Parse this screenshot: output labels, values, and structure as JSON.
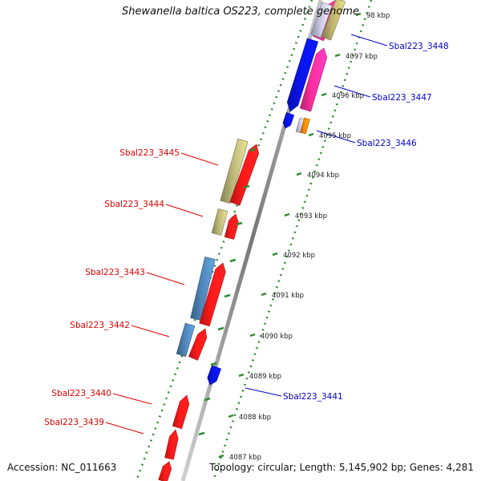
{
  "title": "Shewanella baltica OS223, complete genome",
  "footer": {
    "accession": "Accession: NC_011663",
    "topology": "Topology: circular; Length: 5,145,902 bp; Genes: 4,281"
  },
  "colors": {
    "backbone": "#8c8c8c",
    "tick": "#2e8b2e",
    "forward_gene": "#ff1a1a",
    "reverse_gene": "#0a14f0",
    "khaki": "#bdb879",
    "steelblue": "#4f86b8",
    "pink": "#ff2fa0",
    "orange": "#ff8c00",
    "red_label": "#e00000",
    "blue_label": "#0000cc"
  },
  "ticks": [
    {
      "label": "98 kbp"
    },
    {
      "label": "4097 kbp"
    },
    {
      "label": "4096 kbp"
    },
    {
      "label": "4095 kbp"
    },
    {
      "label": "4094 kbp"
    },
    {
      "label": "4093 kbp"
    },
    {
      "label": "4092 kbp"
    },
    {
      "label": "4091 kbp"
    },
    {
      "label": "4090 kbp"
    },
    {
      "label": "4089 kbp"
    },
    {
      "label": "4088 kbp"
    },
    {
      "label": "4087 kbp"
    }
  ],
  "gene_labels": [
    {
      "text": "Sbal223_3448",
      "color": "blue"
    },
    {
      "text": "Sbal223_3447",
      "color": "blue"
    },
    {
      "text": "Sbal223_3446",
      "color": "blue"
    },
    {
      "text": "Sbal223_3445",
      "color": "red"
    },
    {
      "text": "Sbal223_3444",
      "color": "red"
    },
    {
      "text": "Sbal223_3443",
      "color": "red"
    },
    {
      "text": "Sbal223_3442",
      "color": "red"
    },
    {
      "text": "Sbal223_3441",
      "color": "blue"
    },
    {
      "text": "Sbal223_3440",
      "color": "red"
    },
    {
      "text": "Sbal223_3439",
      "color": "red"
    }
  ]
}
